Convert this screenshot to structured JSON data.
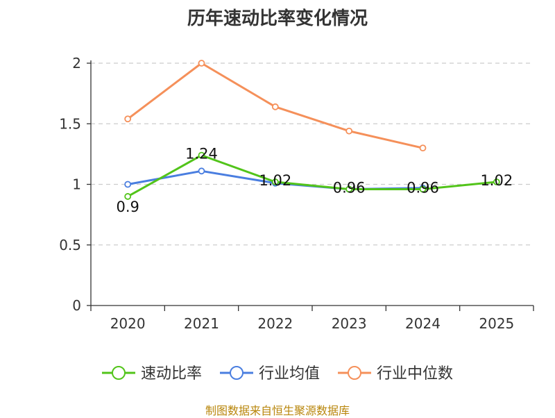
{
  "chart_data": {
    "type": "line",
    "title": "历年速动比率变化情况",
    "categories": [
      "2020",
      "2021",
      "2022",
      "2023",
      "2024",
      "2025"
    ],
    "ylim": [
      0,
      2
    ],
    "yticks": [
      0,
      0.5,
      1,
      1.5,
      2
    ],
    "ytick_labels": [
      "0",
      "0.5",
      "1",
      "1.5",
      "2"
    ],
    "grid": true,
    "legend_position": "bottom",
    "xlabel": "",
    "ylabel": "",
    "series": [
      {
        "name": "速动比率",
        "values": [
          0.9,
          1.24,
          1.02,
          0.96,
          0.96,
          1.02
        ],
        "labels": [
          "0.9",
          "1.24",
          "1.02",
          "0.96",
          "0.96",
          "1.02"
        ],
        "color": "#52c41a"
      },
      {
        "name": "行业均值",
        "values": [
          1.0,
          1.11,
          1.01,
          0.96,
          0.97,
          null
        ],
        "color": "#4a7ee0"
      },
      {
        "name": "行业中位数",
        "values": [
          1.54,
          2.0,
          1.64,
          1.44,
          1.3,
          null
        ],
        "color": "#f5905a"
      }
    ]
  },
  "footer": {
    "source": "制图数据来自恒生聚源数据库"
  }
}
